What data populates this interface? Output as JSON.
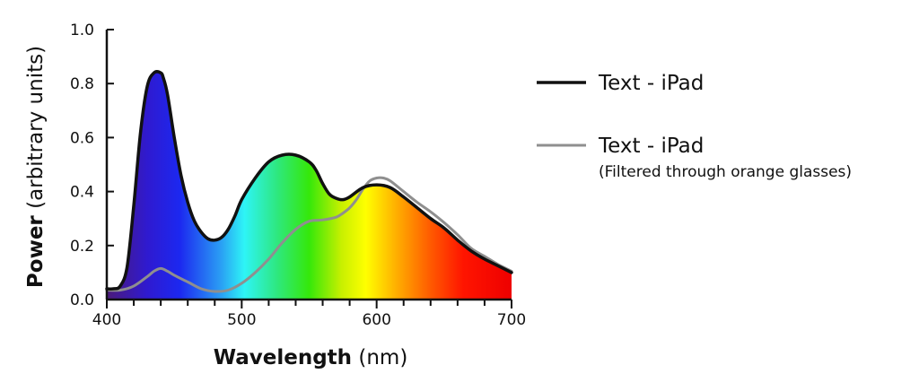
{
  "chart_data": {
    "type": "line",
    "xlabel_bold": "Wavelength",
    "xlabel_unit": "(nm)",
    "ylabel_bold": "Power",
    "ylabel_unit": "(arbitrary units)",
    "xlim": [
      400,
      700
    ],
    "ylim": [
      0,
      1.0
    ],
    "x_ticks": [
      "400",
      "500",
      "600",
      "700"
    ],
    "x_tick_values": [
      400,
      500,
      600,
      700
    ],
    "y_ticks": [
      "0.0",
      "0.2",
      "0.4",
      "0.6",
      "0.8",
      "1.0"
    ],
    "y_tick_values": [
      0,
      0.2,
      0.4,
      0.6,
      0.8,
      1.0
    ],
    "grid": false,
    "legend_position": "right",
    "series": [
      {
        "name": "Text - iPad",
        "color": "#111111",
        "x": [
          400,
          405,
          410,
          415,
          420,
          425,
          430,
          435,
          440,
          442,
          445,
          450,
          455,
          460,
          465,
          470,
          475,
          480,
          485,
          490,
          495,
          500,
          510,
          520,
          530,
          540,
          550,
          555,
          560,
          565,
          570,
          575,
          580,
          590,
          600,
          610,
          620,
          630,
          640,
          650,
          660,
          670,
          680,
          690,
          700
        ],
        "y": [
          0.04,
          0.04,
          0.05,
          0.12,
          0.35,
          0.62,
          0.79,
          0.84,
          0.84,
          0.82,
          0.76,
          0.6,
          0.46,
          0.36,
          0.29,
          0.25,
          0.225,
          0.22,
          0.23,
          0.26,
          0.31,
          0.37,
          0.45,
          0.51,
          0.535,
          0.535,
          0.51,
          0.48,
          0.43,
          0.39,
          0.375,
          0.37,
          0.38,
          0.415,
          0.425,
          0.415,
          0.38,
          0.34,
          0.3,
          0.265,
          0.22,
          0.18,
          0.15,
          0.125,
          0.1
        ]
      },
      {
        "name": "Text - iPad",
        "subtitle": "(Filtered through orange glasses)",
        "color": "#8f8f8f",
        "x": [
          400,
          410,
          420,
          430,
          435,
          440,
          445,
          450,
          460,
          470,
          480,
          490,
          500,
          510,
          520,
          530,
          540,
          550,
          560,
          570,
          575,
          580,
          585,
          590,
          595,
          600,
          605,
          610,
          620,
          630,
          640,
          650,
          660,
          670,
          680,
          690,
          700
        ],
        "y": [
          0.035,
          0.035,
          0.05,
          0.085,
          0.105,
          0.115,
          0.105,
          0.09,
          0.065,
          0.04,
          0.03,
          0.035,
          0.06,
          0.1,
          0.15,
          0.21,
          0.26,
          0.29,
          0.295,
          0.305,
          0.32,
          0.34,
          0.37,
          0.41,
          0.44,
          0.45,
          0.45,
          0.44,
          0.4,
          0.36,
          0.325,
          0.285,
          0.24,
          0.19,
          0.16,
          0.13,
          0.105
        ]
      }
    ]
  }
}
